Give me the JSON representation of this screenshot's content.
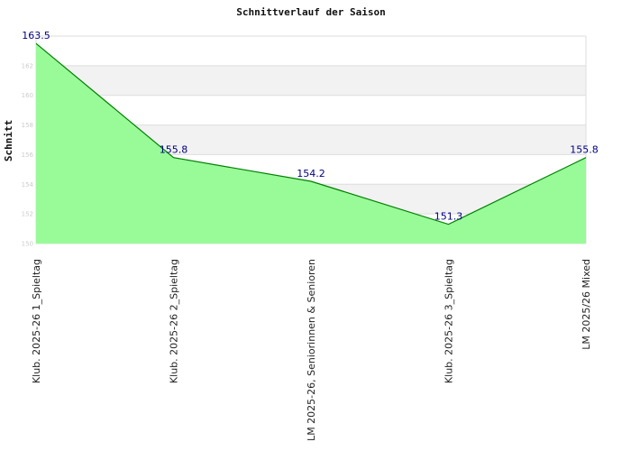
{
  "chart_data": {
    "type": "area",
    "title": "Schnittverlauf der Saison",
    "xlabel": "",
    "ylabel": "Schnitt",
    "categories": [
      "Klub. 2025-26  1_Spieltag",
      "Klub. 2025-26  2_Spieltag",
      "LM 2025-26, Seniorinnen & Senioren",
      "Klub. 2025-26  3_Spieltag",
      "LM 2025/26 Mixed"
    ],
    "values": [
      163.5,
      155.8,
      154.2,
      151.3,
      155.8
    ],
    "data_labels": [
      "163.5",
      "155.8",
      "154.2",
      "151.3",
      "155.8"
    ],
    "yticks": [
      "150",
      "152",
      "154",
      "156",
      "158",
      "160",
      "162"
    ],
    "ylim": [
      150,
      164
    ],
    "grid": "horizontal alternating bands",
    "legend": "none",
    "colors": {
      "fill": "#98fb98",
      "line": "#008000",
      "band": "#f2f2f2",
      "grid": "#dddddd",
      "data_label": "#000080"
    }
  }
}
